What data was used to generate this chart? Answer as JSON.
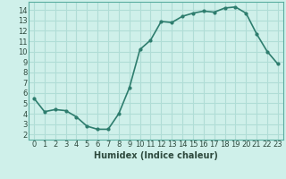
{
  "x": [
    0,
    1,
    2,
    3,
    4,
    5,
    6,
    7,
    8,
    9,
    10,
    11,
    12,
    13,
    14,
    15,
    16,
    17,
    18,
    19,
    20,
    21,
    22,
    23
  ],
  "y": [
    5.5,
    4.2,
    4.4,
    4.3,
    3.7,
    2.8,
    2.5,
    2.5,
    4.0,
    6.5,
    10.2,
    11.1,
    12.9,
    12.8,
    13.4,
    13.7,
    13.9,
    13.8,
    14.2,
    14.3,
    13.7,
    11.7,
    10.0,
    8.8
  ],
  "line_color": "#2e7d6e",
  "marker": "o",
  "marker_size": 2,
  "linewidth": 1.2,
  "xlabel": "Humidex (Indice chaleur)",
  "xlim": [
    -0.5,
    23.5
  ],
  "ylim": [
    1.5,
    14.8
  ],
  "xticks": [
    0,
    1,
    2,
    3,
    4,
    5,
    6,
    7,
    8,
    9,
    10,
    11,
    12,
    13,
    14,
    15,
    16,
    17,
    18,
    19,
    20,
    21,
    22,
    23
  ],
  "yticks": [
    2,
    3,
    4,
    5,
    6,
    7,
    8,
    9,
    10,
    11,
    12,
    13,
    14
  ],
  "bg_color": "#cff0ea",
  "grid_color": "#b0ddd6",
  "tick_fontsize": 6,
  "label_fontsize": 7
}
